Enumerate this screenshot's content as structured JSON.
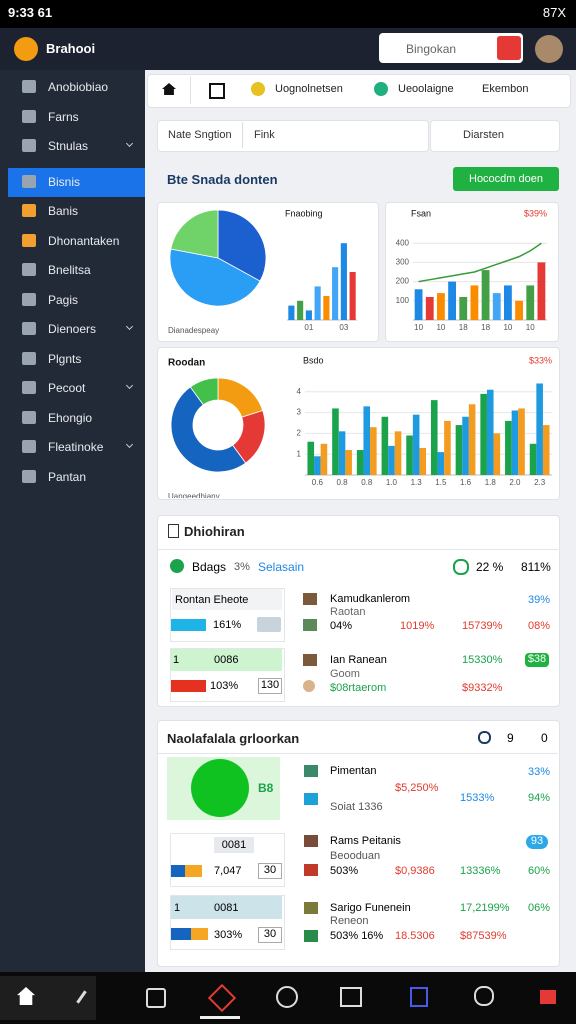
{
  "status_bar": {
    "time": "9:33 61",
    "right": "87X"
  },
  "header": {
    "app_name": "Brahooi",
    "search_placeholder": "Bingokan"
  },
  "sidebar": {
    "items": [
      "Anobiobiao",
      "Farns",
      "Stnulas",
      "Bisnis",
      "Banis",
      "Dhonantaken",
      "Bnelitsa",
      "Pagis",
      "Dienoers",
      "Plgnts",
      "Pecoot",
      "Ehongio",
      "Fleatinoke",
      "Pantan"
    ],
    "active_index": 3,
    "expandable": [
      2,
      8,
      10,
      12
    ]
  },
  "tabs": [
    "Uognolnetsen",
    "Ueoolaigne",
    "Ekembon"
  ],
  "filters": {
    "left": "Nate Sngtion",
    "middle": "Fink",
    "search": "Diarsten"
  },
  "section": {
    "title": "Bte Snada donten",
    "button": "Hococdm doen"
  },
  "charts": [
    {
      "type": "pie",
      "caption": "Dianadespeay",
      "values": [
        33,
        45,
        22
      ],
      "colors": [
        "#1c5fcf",
        "#2a9df4",
        "#6fd36a"
      ]
    },
    {
      "type": "bar",
      "title": "Fnaobing",
      "ylim": [
        0,
        10
      ],
      "values": [
        1.5,
        2,
        1,
        3.5,
        2.5,
        5.5,
        8,
        5
      ],
      "colors": [
        "#1e88e5",
        "#43a047",
        "#1e88e5",
        "#42a5f5",
        "#fb8c00",
        "#42a5f5",
        "#1e88e5",
        "#e53935"
      ],
      "categories": [
        null,
        null,
        "01",
        null,
        null,
        null,
        "03",
        null
      ]
    },
    {
      "type": "bar",
      "title": "Fsan",
      "corner": "$39%",
      "ylim": [
        0,
        500
      ],
      "yticks": [
        100,
        200,
        300,
        400
      ],
      "values": [
        160,
        120,
        140,
        200,
        120,
        180,
        260,
        140,
        180,
        100,
        180,
        300
      ],
      "colors": [
        "#1e88e5",
        "#e53935",
        "#fb8c00",
        "#1e88e5",
        "#43a047",
        "#fb8c00",
        "#43a047",
        "#42a5f5",
        "#1e88e5",
        "#fb8c00",
        "#43a047",
        "#e53935"
      ],
      "line_values": [
        200,
        210,
        220,
        230,
        240,
        250,
        270,
        290,
        310,
        330,
        360,
        400
      ],
      "line_color": "#3a9a3a",
      "categories": [
        "10",
        null,
        "10",
        null,
        "18",
        null,
        "18",
        null,
        "10",
        null,
        "10",
        null
      ]
    },
    {
      "type": "donut",
      "title": "Roodan",
      "caption": "Uangeedhiany",
      "values": [
        20,
        20,
        50,
        10
      ],
      "colors": [
        "#f39c12",
        "#e53935",
        "#1565c0",
        "#43c04a"
      ]
    },
    {
      "type": "grouped_bar",
      "title": "Bsdo",
      "corner": "$33%",
      "ylim": [
        0,
        5
      ],
      "yticks": [
        1,
        2,
        3,
        4
      ],
      "categories": [
        "0.6",
        "0.8",
        "0.8",
        "1.0",
        "1.3",
        "1.5",
        "1.6",
        "1.8",
        "2.0",
        "2.3"
      ],
      "series": [
        {
          "color": "#1aa34a",
          "values": [
            1.6,
            3.2,
            1.2,
            2.8,
            1.9,
            3.6,
            2.4,
            3.9,
            2.6,
            1.5
          ]
        },
        {
          "color": "#1e9be0",
          "values": [
            0.9,
            2.1,
            3.3,
            1.4,
            2.9,
            1.1,
            2.8,
            4.1,
            3.1,
            4.4
          ]
        },
        {
          "color": "#f39c1f",
          "values": [
            1.5,
            1.2,
            2.3,
            2.1,
            1.3,
            2.6,
            3.4,
            2.0,
            3.2,
            2.4
          ]
        }
      ]
    }
  ],
  "list_panel": {
    "title": "Dhiohiran",
    "summary": {
      "label": "Bdags",
      "code": "3%",
      "link": "Selasain",
      "count": "22 %",
      "total": "811%"
    },
    "box1": {
      "label": "Rontan Eheote",
      "value": "161%"
    },
    "box2": {
      "label": "1",
      "value": "0086",
      "bar_value": "103%",
      "chip": "130"
    },
    "item1": {
      "name": "Kamudkanlerom",
      "sub": "Raotan",
      "a": "04%",
      "b": "1019%",
      "c": "15739%",
      "d": "08%",
      "top": "39%"
    },
    "item2": {
      "name": "Ian Ranean",
      "sub": "Goom",
      "a": "$08rtaerom",
      "b": "15330%",
      "c": "$9332%",
      "badge": "$38"
    }
  },
  "grid_panel": {
    "title": "Naolafalala grloorkan",
    "icons": [
      "9",
      "0"
    ],
    "circle_label": "B8",
    "item1": {
      "name": "Pimentan",
      "sub": "Soiat 1336",
      "a": "$5,250%",
      "b": "1533%",
      "c": "94%",
      "top": "33%"
    },
    "box2": {
      "chip": "0081",
      "value": "7,047",
      "end": "30"
    },
    "item2": {
      "name": "Rams Peitanis",
      "sub": "Beooduan",
      "a": "503%",
      "b": "$0,9386",
      "c": "13336%",
      "d": "60%",
      "badge": "93"
    },
    "box3": {
      "label": "1",
      "chip": "0081",
      "value": "303%",
      "end": "30"
    },
    "item3": {
      "name": "Sarigo Funenein",
      "sub": "Reneon",
      "a": "503% 16%",
      "b": "18.5306",
      "c": "$87539%",
      "d": "06%",
      "top": "17,2199%"
    }
  }
}
